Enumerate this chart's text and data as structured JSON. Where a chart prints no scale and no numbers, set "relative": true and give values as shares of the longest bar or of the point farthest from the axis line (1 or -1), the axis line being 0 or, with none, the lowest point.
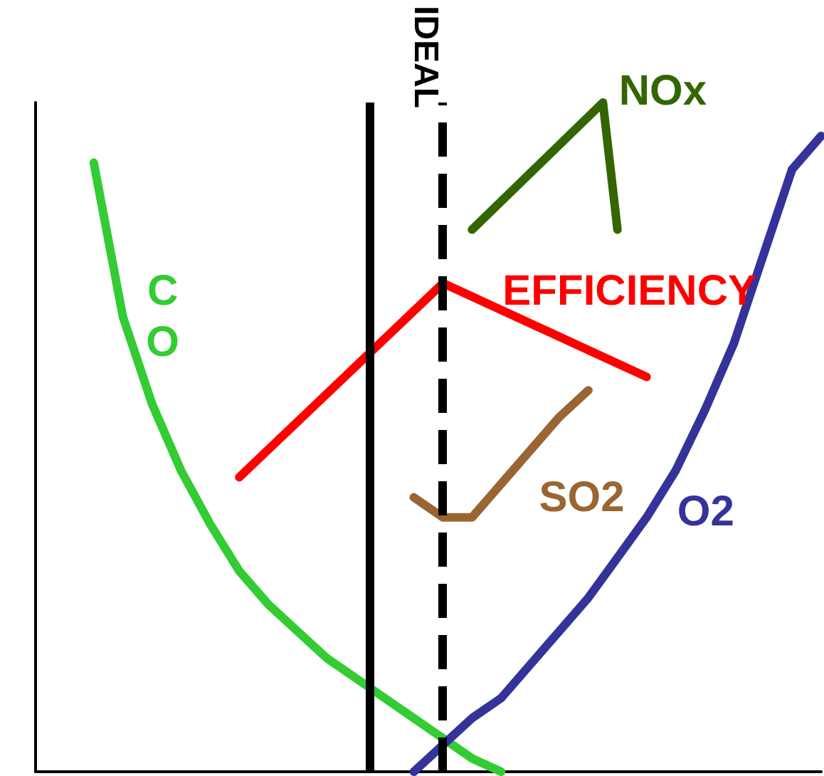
{
  "chart_data": {
    "type": "line",
    "relative": true,
    "categories": [
      null,
      null,
      null,
      null,
      null,
      null,
      null,
      null,
      null,
      null,
      null,
      null,
      null,
      null,
      null,
      null,
      null,
      null,
      null,
      null,
      null,
      null,
      null,
      null,
      null,
      null,
      null,
      null,
      null,
      null,
      null,
      null,
      null,
      null,
      null,
      null,
      null,
      null,
      null,
      null,
      null,
      null,
      null,
      null,
      null,
      null,
      null,
      null,
      null,
      null,
      null,
      null,
      null,
      null,
      null
    ],
    "series": [
      {
        "name": "CO",
        "color": "#33cc33",
        "values": [
          null,
          null,
          null,
          null,
          0.91,
          null,
          0.68,
          null,
          0.55,
          null,
          0.45,
          null,
          0.37,
          null,
          0.3,
          null,
          0.25,
          null,
          0.21,
          null,
          0.17,
          null,
          0.14,
          null,
          0.11,
          null,
          0.08,
          null,
          0.05,
          null,
          0.02,
          null,
          0,
          null,
          null,
          null,
          null,
          null,
          null,
          null,
          null,
          null,
          null,
          null,
          null,
          null,
          null,
          null,
          null,
          null,
          null,
          null,
          null,
          null,
          null
        ]
      },
      {
        "name": "NOx",
        "color": "#336600",
        "values": [
          null,
          null,
          null,
          null,
          null,
          null,
          null,
          null,
          null,
          null,
          null,
          null,
          null,
          null,
          null,
          null,
          null,
          null,
          null,
          null,
          null,
          null,
          null,
          null,
          null,
          null,
          null,
          null,
          null,
          null,
          0.81,
          null,
          null,
          null,
          null,
          null,
          null,
          null,
          null,
          1.0,
          0.81,
          null,
          null,
          null,
          null,
          null,
          null,
          null,
          null,
          null,
          null,
          null,
          null,
          null,
          null
        ]
      },
      {
        "name": "EFFICIENCY",
        "color": "#ff0000",
        "values": [
          null,
          null,
          null,
          null,
          null,
          null,
          null,
          null,
          null,
          null,
          null,
          null,
          null,
          null,
          0.44,
          null,
          null,
          null,
          null,
          null,
          null,
          null,
          null,
          null,
          null,
          null,
          null,
          null,
          0.73,
          null,
          null,
          null,
          null,
          null,
          null,
          null,
          null,
          null,
          null,
          null,
          null,
          null,
          0.59,
          null,
          null,
          null,
          null,
          null,
          null,
          null,
          null,
          null,
          null,
          null,
          null
        ]
      },
      {
        "name": "SO2",
        "color": "#996633",
        "values": [
          null,
          null,
          null,
          null,
          null,
          null,
          null,
          null,
          null,
          null,
          null,
          null,
          null,
          null,
          null,
          null,
          null,
          null,
          null,
          null,
          null,
          null,
          null,
          null,
          null,
          null,
          0.41,
          null,
          0.38,
          null,
          0.38,
          null,
          0.43,
          null,
          0.48,
          null,
          0.53,
          null,
          0.57,
          null,
          null,
          null,
          null,
          null,
          null,
          null,
          null,
          null,
          null,
          null,
          null,
          null,
          null,
          null,
          null
        ]
      },
      {
        "name": "O2",
        "color": "#333399",
        "values": [
          null,
          null,
          null,
          null,
          null,
          null,
          null,
          null,
          null,
          null,
          null,
          null,
          null,
          null,
          null,
          null,
          null,
          null,
          null,
          null,
          null,
          null,
          null,
          null,
          null,
          null,
          0,
          null,
          0.04,
          null,
          0.08,
          null,
          0.11,
          null,
          0.16,
          null,
          0.21,
          null,
          0.26,
          null,
          0.32,
          null,
          0.38,
          null,
          0.45,
          null,
          0.54,
          null,
          0.64,
          null,
          0.77,
          null,
          0.9,
          null,
          0.95
        ]
      }
    ],
    "annotations": [
      "IDEAL"
    ],
    "grid": false,
    "legend": false,
    "tick_labels": false,
    "marker": "none",
    "line_style": "solid"
  }
}
